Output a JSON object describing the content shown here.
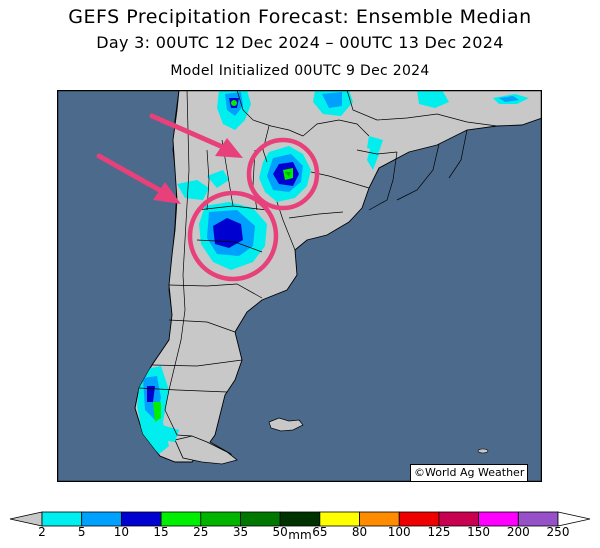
{
  "title": "GEFS Precipitation Forecast: Ensemble Median",
  "period": "Day 3: 00UTC 12 Dec 2024 – 00UTC 13 Dec 2024",
  "init": "Model Initialized 00UTC 9 Dec 2024",
  "credit": "©World Ag Weather",
  "legend": {
    "unit": "mm",
    "ticks": [
      "2",
      "5",
      "10",
      "15",
      "25",
      "35",
      "50",
      "65",
      "80",
      "100",
      "125",
      "150",
      "200",
      "250"
    ],
    "colors": [
      "#00eeee",
      "#00a0ff",
      "#0000d0",
      "#00ee00",
      "#00b400",
      "#007800",
      "#003200",
      "#ffff00",
      "#ff8c00",
      "#ee0000",
      "#c80050",
      "#ff00ff",
      "#9650c8"
    ]
  },
  "colors": {
    "ocean": "#4c6a8c",
    "land": "#c8c8c8",
    "highlight": "#e8407a"
  }
}
